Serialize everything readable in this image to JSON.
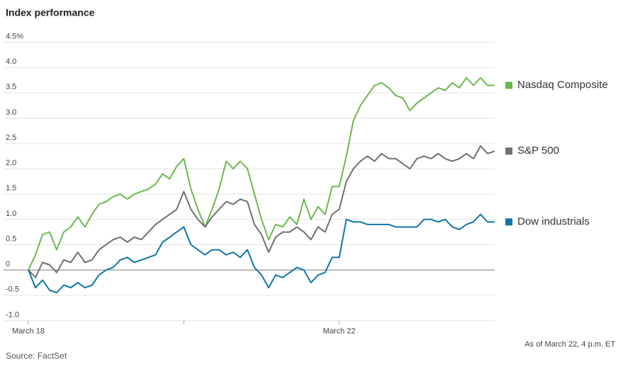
{
  "chart_data": {
    "type": "line",
    "title": "Index performance",
    "source": "Source: FactSet",
    "note": "As of March 22, 4 p.m. ET",
    "grid": true,
    "xlim": [
      0,
      66
    ],
    "xticks": [
      {
        "value": 0,
        "label": "March 18"
      },
      {
        "value": 22,
        "label": null
      },
      {
        "value": 44,
        "label": "March 22"
      }
    ],
    "ylim": [
      -1,
      4.5
    ],
    "yticks": [
      {
        "value": -1,
        "label": "-1.0"
      },
      -0.5,
      0,
      0.5,
      {
        "value": 1,
        "label": "1.0"
      },
      1.5,
      {
        "value": 2,
        "label": "2.0"
      },
      2.5,
      {
        "value": 3,
        "label": "3.0"
      },
      3.5,
      {
        "value": 4,
        "label": "4.0"
      },
      {
        "value": 4.5,
        "label": "4.5%"
      }
    ],
    "legend": "right",
    "series": [
      {
        "name": "Nasdaq Composite",
        "color": "#6ab94d",
        "values": [
          0,
          0.3,
          0.7,
          0.75,
          0.4,
          0.75,
          0.85,
          1.05,
          0.85,
          1.1,
          1.3,
          1.35,
          1.45,
          1.5,
          1.4,
          1.5,
          1.55,
          1.6,
          1.7,
          1.9,
          1.8,
          2.05,
          2.2,
          1.6,
          1.2,
          0.85,
          1.2,
          1.6,
          2.15,
          2.0,
          2.15,
          2.0,
          1.5,
          1.0,
          0.6,
          0.9,
          0.85,
          1.05,
          0.9,
          1.4,
          1.0,
          1.25,
          1.1,
          1.65,
          1.65,
          2.25,
          2.95,
          3.25,
          3.45,
          3.65,
          3.7,
          3.6,
          3.45,
          3.4,
          3.15,
          3.3,
          3.4,
          3.5,
          3.6,
          3.55,
          3.7,
          3.6,
          3.8,
          3.65,
          3.8,
          3.65,
          3.65
        ]
      },
      {
        "name": "S&P 500",
        "color": "#707070",
        "values": [
          0,
          -0.15,
          0.15,
          0.1,
          -0.05,
          0.2,
          0.15,
          0.35,
          0.15,
          0.2,
          0.4,
          0.5,
          0.6,
          0.65,
          0.55,
          0.65,
          0.6,
          0.75,
          0.9,
          1.0,
          1.1,
          1.2,
          1.55,
          1.2,
          1.0,
          0.85,
          1.05,
          1.2,
          1.35,
          1.3,
          1.4,
          1.35,
          0.9,
          0.7,
          0.35,
          0.65,
          0.75,
          0.75,
          0.85,
          0.75,
          0.6,
          0.85,
          0.75,
          1.1,
          1.2,
          1.75,
          2.0,
          2.15,
          2.25,
          2.15,
          2.3,
          2.2,
          2.2,
          2.1,
          2.0,
          2.2,
          2.25,
          2.2,
          2.3,
          2.2,
          2.15,
          2.2,
          2.3,
          2.2,
          2.45,
          2.3,
          2.35
        ]
      },
      {
        "name": "Dow industrials",
        "color": "#1276a8",
        "values": [
          0,
          -0.35,
          -0.2,
          -0.4,
          -0.45,
          -0.3,
          -0.35,
          -0.25,
          -0.35,
          -0.3,
          -0.1,
          0,
          0.05,
          0.2,
          0.25,
          0.15,
          0.2,
          0.25,
          0.3,
          0.55,
          0.65,
          0.75,
          0.85,
          0.5,
          0.4,
          0.3,
          0.4,
          0.4,
          0.3,
          0.35,
          0.25,
          0.4,
          0.05,
          -0.1,
          -0.35,
          -0.1,
          -0.15,
          -0.05,
          0.05,
          0,
          -0.25,
          -0.1,
          -0.05,
          0.25,
          0.25,
          1.0,
          0.95,
          0.95,
          0.9,
          0.9,
          0.9,
          0.9,
          0.85,
          0.85,
          0.85,
          0.85,
          1.0,
          1.0,
          0.95,
          1.0,
          0.85,
          0.8,
          0.9,
          0.95,
          1.1,
          0.95,
          0.95
        ]
      }
    ]
  }
}
